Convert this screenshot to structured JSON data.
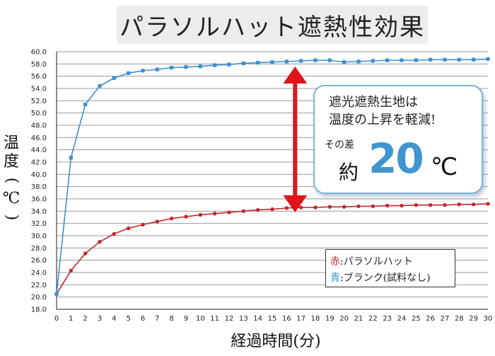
{
  "chart_data": {
    "type": "line",
    "title": "パラソルハット遮熱性効果",
    "xlabel": "経過時間(分)",
    "ylabel": "温度(℃)",
    "xlim": [
      0,
      30
    ],
    "ylim": [
      18.0,
      60.0
    ],
    "x_ticks": [
      0,
      1,
      2,
      3,
      4,
      5,
      6,
      7,
      8,
      9,
      10,
      11,
      12,
      13,
      14,
      15,
      16,
      17,
      18,
      19,
      20,
      21,
      22,
      23,
      24,
      25,
      26,
      27,
      28,
      29,
      30
    ],
    "y_ticks": [
      "18.0",
      "20.0",
      "22.0",
      "24.0",
      "26.0",
      "28.0",
      "30.0",
      "32.0",
      "34.0",
      "36.0",
      "38.0",
      "40.0",
      "42.0",
      "44.0",
      "46.0",
      "48.0",
      "50.0",
      "52.0",
      "54.0",
      "56.0",
      "58.0",
      "60.0"
    ],
    "grid": true,
    "x": [
      0,
      1,
      2,
      3,
      4,
      5,
      6,
      7,
      8,
      9,
      10,
      11,
      12,
      13,
      14,
      15,
      16,
      17,
      18,
      19,
      20,
      21,
      22,
      23,
      24,
      25,
      26,
      27,
      28,
      29,
      30
    ],
    "series": [
      {
        "name": "パラソルハット",
        "color": "#c0282d",
        "marker": "circle",
        "values": [
          20.5,
          24.3,
          27.1,
          29.0,
          30.3,
          31.2,
          31.8,
          32.3,
          32.8,
          33.1,
          33.4,
          33.6,
          33.8,
          34.0,
          34.2,
          34.3,
          34.5,
          34.6,
          34.6,
          34.7,
          34.7,
          34.8,
          34.8,
          34.9,
          34.9,
          35.0,
          35.0,
          35.0,
          35.1,
          35.1,
          35.2
        ]
      },
      {
        "name": "ブランク(試料なし)",
        "color": "#3f8fd0",
        "marker": "square",
        "values": [
          20.5,
          42.7,
          51.4,
          54.4,
          55.7,
          56.5,
          56.9,
          57.1,
          57.4,
          57.5,
          57.6,
          57.8,
          57.9,
          58.1,
          58.2,
          58.3,
          58.4,
          58.5,
          58.6,
          58.6,
          58.3,
          58.4,
          58.5,
          58.6,
          58.6,
          58.6,
          58.7,
          58.7,
          58.7,
          58.7,
          58.8
        ]
      }
    ],
    "legend": {
      "placement": "bottom-right",
      "items": [
        {
          "prefix": "赤",
          "label": ":パラソルハット",
          "color": "#c0282d"
        },
        {
          "prefix": "青",
          "label": ":ブランク(試料なし)",
          "color": "#3f8fd0"
        }
      ]
    },
    "annotation": {
      "line1": "遮光遮熱生地は",
      "line2": "温度の上昇を軽減!",
      "diff_label": "その差",
      "approx": "約",
      "value": "20",
      "unit": "℃",
      "arrow_color": "#e0141b",
      "arrow_from_y": 58.5,
      "arrow_to_y": 34.5,
      "arrow_x": 16
    }
  }
}
